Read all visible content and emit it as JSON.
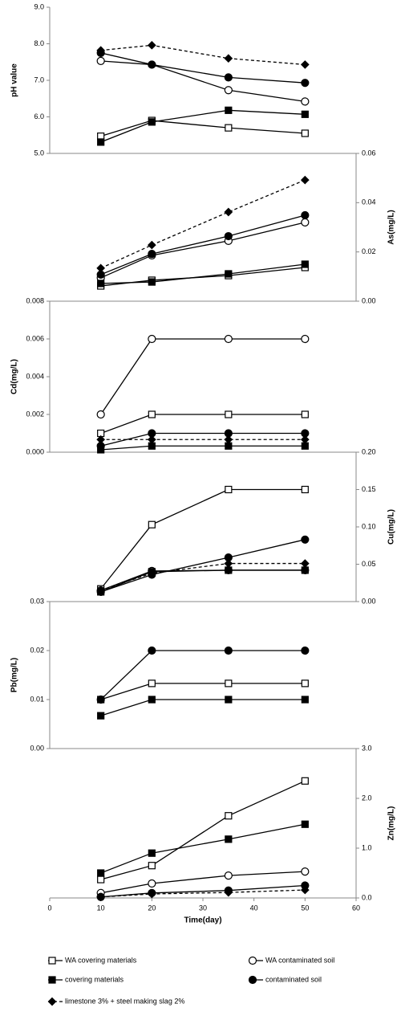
{
  "legend": [
    {
      "name": "WA covering materials",
      "marker": "square",
      "filled": false,
      "dashed": false,
      "color": "#000000"
    },
    {
      "name": "WA contaminated soil",
      "marker": "circle",
      "filled": false,
      "dashed": false,
      "color": "#000000"
    },
    {
      "name": "covering materials",
      "marker": "square",
      "filled": true,
      "dashed": false,
      "color": "#000000"
    },
    {
      "name": "contaminated soil",
      "marker": "circle",
      "filled": true,
      "dashed": false,
      "color": "#000000"
    },
    {
      "name": "limestone 3% + steel making slag 2%",
      "marker": "diamond",
      "filled": true,
      "dashed": true,
      "color": "#000000"
    }
  ],
  "chart_data": [
    {
      "type": "line",
      "ylabel": "pH value",
      "axis_side": "left",
      "x": [
        10,
        20,
        35,
        50
      ],
      "xlim": [
        0,
        60
      ],
      "ylim": [
        5,
        9
      ],
      "yticks": [
        {
          "value": 5,
          "label": "5.0"
        },
        {
          "value": 6,
          "label": "6.0"
        },
        {
          "value": 7,
          "label": "7.0"
        },
        {
          "value": 8,
          "label": "8.0"
        },
        {
          "value": 9,
          "label": "9.0"
        }
      ],
      "series": [
        {
          "values": [
            5.47,
            5.9,
            5.7,
            5.55
          ]
        },
        {
          "values": [
            7.53,
            7.43,
            6.73,
            6.42
          ]
        },
        {
          "values": [
            5.31,
            5.86,
            6.18,
            6.07
          ]
        },
        {
          "values": [
            7.75,
            7.43,
            7.08,
            6.93
          ]
        },
        {
          "values": [
            7.82,
            7.96,
            7.6,
            7.43
          ]
        }
      ]
    },
    {
      "type": "line",
      "ylabel": "As(mg/L)",
      "axis_side": "right",
      "x": [
        10,
        20,
        35,
        50
      ],
      "xlim": [
        0,
        60
      ],
      "ylim": [
        0,
        0.06
      ],
      "yticks": [
        {
          "value": 0,
          "label": "0.00"
        },
        {
          "value": 0.02,
          "label": "0.02"
        },
        {
          "value": 0.04,
          "label": "0.04"
        },
        {
          "value": 0.06,
          "label": "0.06"
        }
      ],
      "series": [
        {
          "values": [
            0.0062,
            0.0085,
            0.0104,
            0.0137
          ]
        },
        {
          "values": [
            0.0095,
            0.0186,
            0.0245,
            0.032
          ]
        },
        {
          "values": [
            0.0072,
            0.0078,
            0.0111,
            0.015
          ]
        },
        {
          "values": [
            0.0108,
            0.0192,
            0.0264,
            0.0349
          ]
        },
        {
          "values": [
            0.0134,
            0.0228,
            0.0362,
            0.0492
          ]
        }
      ]
    },
    {
      "type": "line",
      "ylabel": "Cd(mg/L)",
      "axis_side": "left",
      "x": [
        10,
        20,
        35,
        50
      ],
      "xlim": [
        0,
        60
      ],
      "ylim": [
        0,
        0.008
      ],
      "yticks": [
        {
          "value": 0,
          "label": "0.000"
        },
        {
          "value": 0.002,
          "label": "0.002"
        },
        {
          "value": 0.004,
          "label": "0.004"
        },
        {
          "value": 0.006,
          "label": "0.006"
        },
        {
          "value": 0.008,
          "label": "0.008"
        }
      ],
      "series": [
        {
          "values": [
            0.001,
            0.002,
            0.002,
            0.002
          ]
        },
        {
          "values": [
            0.002,
            0.006,
            0.006,
            0.006
          ]
        },
        {
          "values": [
            0.00013,
            0.00033,
            0.00033,
            0.00033
          ]
        },
        {
          "values": [
            0.00033,
            0.001,
            0.001,
            0.001
          ]
        },
        {
          "values": [
            0.00067,
            0.00067,
            0.00067,
            0.00067
          ]
        }
      ]
    },
    {
      "type": "line",
      "ylabel": "Cu(mg/L)",
      "axis_side": "right",
      "x": [
        10,
        20,
        35,
        50
      ],
      "xlim": [
        0,
        60
      ],
      "ylim": [
        0,
        0.2
      ],
      "yticks": [
        {
          "value": 0,
          "label": "0.00"
        },
        {
          "value": 0.05,
          "label": "0.05"
        },
        {
          "value": 0.1,
          "label": "0.10"
        },
        {
          "value": 0.15,
          "label": "0.15"
        },
        {
          "value": 0.2,
          "label": "0.20"
        }
      ],
      "series": [
        {
          "values": [
            0.017,
            0.103,
            0.15,
            0.15
          ]
        },
        {
          "values": [
            0.015,
            0.041,
            0.042,
            0.042
          ]
        },
        {
          "values": [
            0.013,
            0.04,
            0.042,
            0.042
          ]
        },
        {
          "values": [
            0.013,
            0.036,
            0.059,
            0.083
          ]
        },
        {
          "values": [
            0.015,
            0.038,
            0.051,
            0.051
          ]
        }
      ]
    },
    {
      "type": "line",
      "ylabel": "Pb(mg/L)",
      "axis_side": "left",
      "x": [
        10,
        20,
        35,
        50
      ],
      "xlim": [
        0,
        60
      ],
      "ylim": [
        0,
        0.03
      ],
      "yticks": [
        {
          "value": 0,
          "label": "0.00"
        },
        {
          "value": 0.01,
          "label": "0.01"
        },
        {
          "value": 0.02,
          "label": "0.02"
        },
        {
          "value": 0.03,
          "label": "0.03"
        }
      ],
      "series": [
        {
          "values": [
            0.01,
            0.0133,
            0.0133,
            0.0133
          ]
        },
        {
          "values": [
            null,
            null,
            null,
            null
          ]
        },
        {
          "values": [
            0.0067,
            0.01,
            0.01,
            0.01
          ]
        },
        {
          "values": [
            0.01,
            0.02,
            0.02,
            0.02
          ]
        },
        {
          "values": [
            null,
            null,
            null,
            null
          ]
        }
      ]
    },
    {
      "type": "line",
      "ylabel": "Zn(mg/L)",
      "axis_side": "right",
      "x": [
        10,
        20,
        35,
        50
      ],
      "xlim": [
        0,
        60
      ],
      "xlabel": "Time(day)",
      "xticks": [
        0,
        10,
        20,
        30,
        40,
        50,
        60
      ],
      "ylim": [
        0,
        3
      ],
      "yticks": [
        {
          "value": 0,
          "label": "0.0"
        },
        {
          "value": 1,
          "label": "1.0"
        },
        {
          "value": 2,
          "label": "2.0"
        },
        {
          "value": 3,
          "label": "3.0"
        }
      ],
      "series": [
        {
          "values": [
            0.37,
            0.65,
            1.65,
            2.35
          ]
        },
        {
          "values": [
            0.1,
            0.29,
            0.45,
            0.53
          ]
        },
        {
          "values": [
            0.5,
            0.9,
            1.18,
            1.48
          ]
        },
        {
          "values": [
            0.02,
            0.1,
            0.15,
            0.25
          ]
        },
        {
          "values": [
            0.02,
            0.08,
            0.11,
            0.16
          ]
        }
      ]
    }
  ]
}
